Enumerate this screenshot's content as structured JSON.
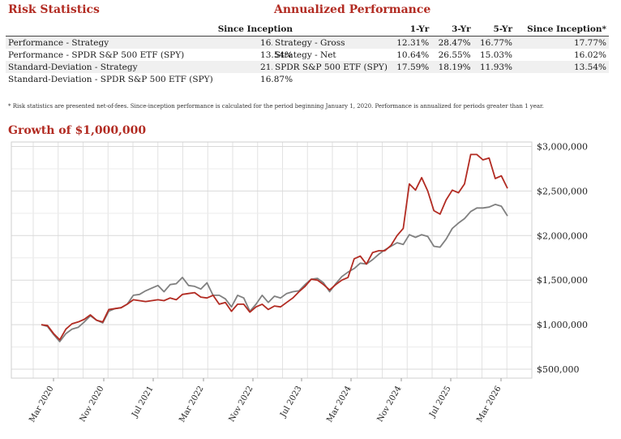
{
  "risk": {
    "title": "Risk Statistics",
    "column": "Since Inception",
    "rows": [
      {
        "label": "Performance - Strategy",
        "value": "16.02%"
      },
      {
        "label": "Performance - SPDR S&P 500 ETF (SPY)",
        "value": "13.54%"
      },
      {
        "label": "Standard-Deviation - Strategy",
        "value": "21.05%"
      },
      {
        "label": "Standard-Deviation - SPDR S&P 500 ETF (SPY)",
        "value": "16.87%"
      }
    ]
  },
  "annualized": {
    "title": "Annualized Performance",
    "columns": [
      "1-Yr",
      "3-Yr",
      "5-Yr",
      "Since Inception*"
    ],
    "rows": [
      {
        "label": "Strategy - Gross",
        "values": [
          "12.31%",
          "28.47%",
          "16.77%",
          "17.77%"
        ]
      },
      {
        "label": "Strategy - Net",
        "values": [
          "10.64%",
          "26.55%",
          "15.03%",
          "16.02%"
        ]
      },
      {
        "label": "SPDR S&P 500 ETF (SPY)",
        "values": [
          "17.59%",
          "18.19%",
          "11.93%",
          "13.54%"
        ]
      }
    ]
  },
  "footnote": "* Risk statistics are presented net-of-fees. Since-inception performance is calculated for the period beginning January 1, 2020. Performance is annualized for periods greater than 1 year.",
  "chart_data": {
    "type": "line",
    "title": "Growth of $1,000,000",
    "ylim": [
      400000,
      3050000
    ],
    "y_ticks": [
      500000,
      1000000,
      1500000,
      2000000,
      2500000,
      3000000
    ],
    "y_tick_labels": [
      "$500,000",
      "$1,000,000",
      "$1,500,000",
      "$2,000,000",
      "$2,500,000",
      "$3,000,000"
    ],
    "x_tick_labels": [
      "Mar 2020",
      "Nov 2020",
      "Jul 2021",
      "Mar 2022",
      "Nov 2022",
      "Jul 2023",
      "Mar 2024",
      "Nov 2024",
      "Jul 2025",
      "Mar 2026"
    ],
    "grid": true,
    "colors": {
      "strategy": "#b22b22",
      "benchmark": "#808080",
      "title": "#b22b22"
    },
    "series": [
      {
        "key": "strategy",
        "values": [
          1000000,
          990000,
          900000,
          830000,
          950000,
          1010000,
          1030000,
          1060000,
          1110000,
          1050000,
          1030000,
          1170000,
          1180000,
          1190000,
          1230000,
          1280000,
          1270000,
          1260000,
          1270000,
          1280000,
          1270000,
          1300000,
          1280000,
          1340000,
          1350000,
          1360000,
          1310000,
          1300000,
          1330000,
          1230000,
          1250000,
          1150000,
          1230000,
          1230000,
          1140000,
          1200000,
          1230000,
          1170000,
          1210000,
          1200000,
          1250000,
          1300000,
          1370000,
          1430000,
          1510000,
          1500000,
          1450000,
          1390000,
          1450000,
          1500000,
          1530000,
          1740000,
          1770000,
          1680000,
          1810000,
          1830000,
          1830000,
          1890000,
          2000000,
          2080000,
          2580000,
          2510000,
          2650000,
          2500000,
          2280000,
          2240000,
          2400000,
          2510000,
          2480000,
          2580000,
          2910000,
          2910000,
          2850000,
          2870000,
          2640000,
          2670000,
          2530000
        ]
      },
      {
        "key": "benchmark",
        "values": [
          1000000,
          980000,
          890000,
          810000,
          900000,
          950000,
          970000,
          1030000,
          1100000,
          1050000,
          1020000,
          1150000,
          1180000,
          1190000,
          1230000,
          1330000,
          1340000,
          1380000,
          1410000,
          1440000,
          1370000,
          1450000,
          1460000,
          1530000,
          1440000,
          1430000,
          1400000,
          1470000,
          1330000,
          1330000,
          1290000,
          1200000,
          1330000,
          1300000,
          1150000,
          1230000,
          1330000,
          1250000,
          1320000,
          1300000,
          1350000,
          1370000,
          1380000,
          1450000,
          1510000,
          1520000,
          1470000,
          1370000,
          1460000,
          1540000,
          1590000,
          1630000,
          1690000,
          1680000,
          1730000,
          1790000,
          1840000,
          1880000,
          1920000,
          1900000,
          2010000,
          1980000,
          2010000,
          1990000,
          1880000,
          1870000,
          1960000,
          2080000,
          2140000,
          2190000,
          2270000,
          2310000,
          2310000,
          2320000,
          2350000,
          2330000,
          2220000
        ]
      }
    ]
  }
}
